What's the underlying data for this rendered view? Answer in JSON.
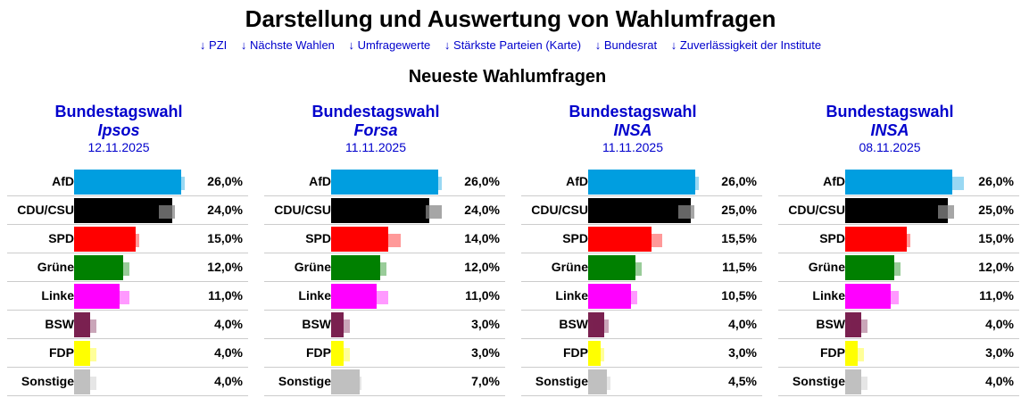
{
  "page": {
    "title": "Darstellung und Auswertung von Wahlumfragen",
    "nav": [
      "↓ PZI",
      "↓ Nächste Wahlen",
      "↓ Umfragewerte",
      "↓ Stärkste Parteien (Karte)",
      "↓ Bundesrat",
      "↓ Zuverlässigkeit der Institute"
    ],
    "subtitle": "Neueste Wahlumfragen"
  },
  "colors": {
    "AfD": "#009ee0",
    "CDU/CSU": "#000000",
    "SPD": "#ff0000",
    "Grüne": "#008000",
    "Linke": "#ff00ff",
    "BSW": "#7a2150",
    "FDP": "#ffff00",
    "Sonstige": "#c0c0c0"
  },
  "chart_data": [
    {
      "type": "bar",
      "title": "Bundestagswahl",
      "institute": "Ipsos",
      "date": "12.11.2025",
      "categories": [
        "AfD",
        "CDU/CSU",
        "SPD",
        "Grüne",
        "Linke",
        "BSW",
        "FDP",
        "Sonstige"
      ],
      "values": [
        26.0,
        24.0,
        15.0,
        12.0,
        11.0,
        4.0,
        4.0,
        4.0
      ],
      "value_labels": [
        "26,0%",
        "24,0%",
        "15,0%",
        "12,0%",
        "11,0%",
        "4,0%",
        "4,0%",
        "4,0%"
      ],
      "previous": [
        25.0,
        22.5,
        14.0,
        11.5,
        11.5,
        3.5,
        3.5,
        3.5
      ],
      "xlim": [
        0,
        40
      ]
    },
    {
      "type": "bar",
      "title": "Bundestagswahl",
      "institute": "Forsa",
      "date": "11.11.2025",
      "categories": [
        "AfD",
        "CDU/CSU",
        "SPD",
        "Grüne",
        "Linke",
        "BSW",
        "FDP",
        "Sonstige"
      ],
      "values": [
        26.0,
        24.0,
        14.0,
        12.0,
        11.0,
        3.0,
        3.0,
        7.0
      ],
      "value_labels": [
        "26,0%",
        "24,0%",
        "14,0%",
        "12,0%",
        "11,0%",
        "3,0%",
        "3,0%",
        "7,0%"
      ],
      "previous": [
        25.0,
        25.0,
        15.0,
        11.5,
        12.0,
        2.5,
        2.5,
        5.5
      ],
      "xlim": [
        0,
        40
      ]
    },
    {
      "type": "bar",
      "title": "Bundestagswahl",
      "institute": "INSA",
      "date": "11.11.2025",
      "categories": [
        "AfD",
        "CDU/CSU",
        "SPD",
        "Grüne",
        "Linke",
        "BSW",
        "FDP",
        "Sonstige"
      ],
      "values": [
        26.0,
        25.0,
        15.5,
        11.5,
        10.5,
        4.0,
        3.0,
        4.5
      ],
      "value_labels": [
        "26,0%",
        "25,0%",
        "15,5%",
        "11,5%",
        "10,5%",
        "4,0%",
        "3,0%",
        "4,5%"
      ],
      "previous": [
        25.0,
        24.0,
        16.0,
        11.0,
        10.0,
        3.0,
        2.0,
        3.5
      ],
      "xlim": [
        0,
        40
      ]
    },
    {
      "type": "bar",
      "title": "Bundestagswahl",
      "institute": "INSA",
      "date": "08.11.2025",
      "categories": [
        "AfD",
        "CDU/CSU",
        "SPD",
        "Grüne",
        "Linke",
        "BSW",
        "FDP",
        "Sonstige"
      ],
      "values": [
        26.0,
        25.0,
        15.0,
        12.0,
        11.0,
        4.0,
        3.0,
        4.0
      ],
      "value_labels": [
        "26,0%",
        "25,0%",
        "15,0%",
        "12,0%",
        "11,0%",
        "4,0%",
        "3,0%",
        "4,0%"
      ],
      "previous": [
        27.0,
        24.5,
        14.0,
        11.5,
        11.0,
        3.5,
        2.5,
        3.5
      ],
      "xlim": [
        0,
        40
      ]
    }
  ]
}
